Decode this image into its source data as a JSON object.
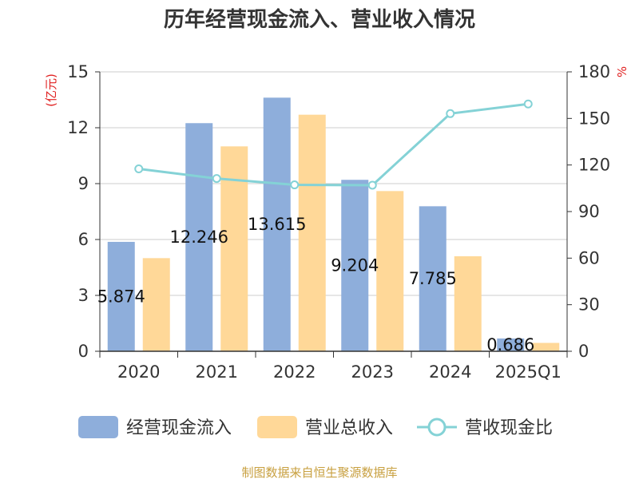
{
  "chart_data": {
    "type": "bar",
    "title": "历年经营现金流入、营业收入情况",
    "categories": [
      "2020",
      "2021",
      "2022",
      "2023",
      "2024",
      "2025Q1"
    ],
    "series": [
      {
        "name": "经营现金流入",
        "type": "bar",
        "axis": "left",
        "color": "#8eaedb",
        "values": [
          5.874,
          12.246,
          13.615,
          9.204,
          7.785,
          0.686
        ],
        "data_labels": [
          "5.874",
          "12.246",
          "13.615",
          "9.204",
          "7.785",
          "0.686"
        ]
      },
      {
        "name": "营业总收入",
        "type": "bar",
        "axis": "left",
        "color": "#ffd898",
        "values": [
          5.0,
          11.0,
          12.7,
          8.6,
          5.1,
          0.45
        ]
      },
      {
        "name": "营收现金比",
        "type": "line",
        "axis": "right",
        "color": "#84d2d6",
        "values": [
          117.5,
          111.3,
          107.2,
          107.0,
          153.1,
          159.3
        ]
      }
    ],
    "y_left": {
      "label": "(亿元)",
      "label_color": "#e02020",
      "min": 0,
      "max": 15,
      "ticks": [
        0,
        3,
        6,
        9,
        12,
        15
      ]
    },
    "y_right": {
      "label": "%",
      "label_color": "#e02020",
      "min": 0,
      "max": 180,
      "ticks": [
        0,
        30,
        60,
        90,
        120,
        150,
        180
      ]
    },
    "grid": true,
    "legend_position": "bottom"
  },
  "footer": {
    "source": "制图数据来自恒生聚源数据库",
    "color": "#c8a040"
  }
}
